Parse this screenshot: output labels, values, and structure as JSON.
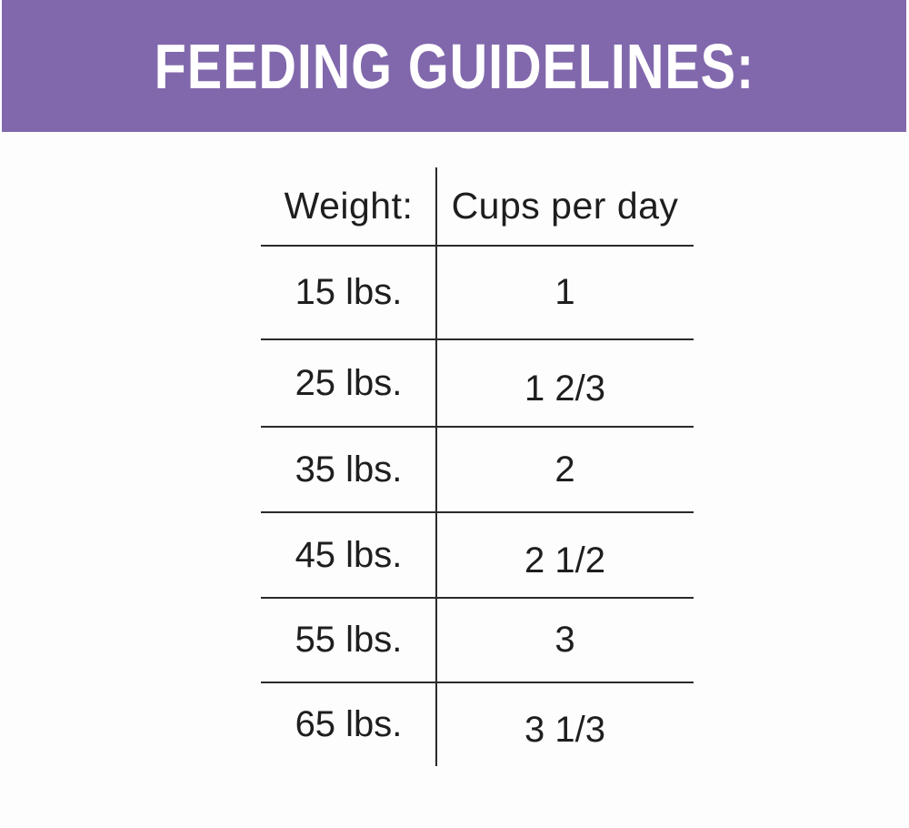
{
  "banner": {
    "title": "FEEDING GUIDELINES:"
  },
  "chart_data": {
    "type": "table",
    "title": "FEEDING GUIDELINES:",
    "columns": [
      "Weight:",
      "Cups per day"
    ],
    "rows": [
      [
        "15 lbs.",
        "1"
      ],
      [
        "25 lbs.",
        "1 2/3"
      ],
      [
        "35 lbs.",
        "2"
      ],
      [
        "45 lbs.",
        "2 1/2"
      ],
      [
        "55 lbs.",
        "3"
      ],
      [
        "65 lbs.",
        "3 1/3"
      ]
    ],
    "layout_hints": {
      "header_divider": true,
      "row_dividers": true,
      "column_divider": true,
      "outer_border": false
    }
  },
  "colors": {
    "banner_purple": "#8168ac",
    "title_text": "#ffffff",
    "body_text": "#1e1e1e",
    "table_line": "#2a2a2a",
    "page_background": "#fdfdfd"
  }
}
